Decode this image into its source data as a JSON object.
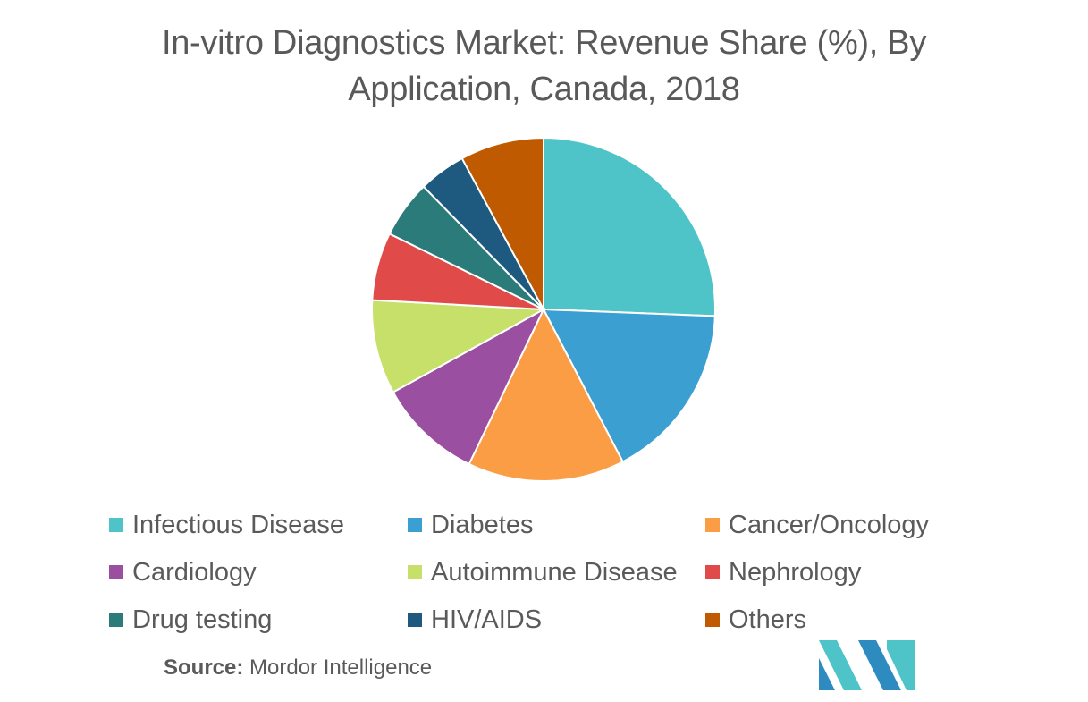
{
  "chart_data": {
    "type": "pie",
    "title_line1": "In-vitro Diagnostics Market: Revenue Share (%), By",
    "title_line2": "Application, Canada, 2018",
    "slices": [
      {
        "label": "Infectious Disease",
        "value": 26,
        "color": "#4fc4c8"
      },
      {
        "label": "Diabetes",
        "value": 17,
        "color": "#3b9fd1"
      },
      {
        "label": "Cancer/Oncology",
        "value": 15,
        "color": "#fb9d45"
      },
      {
        "label": "Cardiology",
        "value": 10,
        "color": "#9b4fa0"
      },
      {
        "label": "Autoimmune Disease",
        "value": 9,
        "color": "#c7e06a"
      },
      {
        "label": "Nephrology",
        "value": 6.5,
        "color": "#e04b4a"
      },
      {
        "label": "Drug testing",
        "value": 5.5,
        "color": "#2b7b7b"
      },
      {
        "label": "HIV/AIDS",
        "value": 4.5,
        "color": "#1e5a80"
      },
      {
        "label": "Others",
        "value": 8,
        "color": "#bf5a00"
      }
    ],
    "legend_placement": "bottom"
  },
  "source": {
    "label": "Source:",
    "text": "Mordor Intelligence"
  },
  "logo": {
    "icon": "mordor-intelligence-logo",
    "colors": [
      "#2e8bc0",
      "#4fc4c8"
    ]
  }
}
